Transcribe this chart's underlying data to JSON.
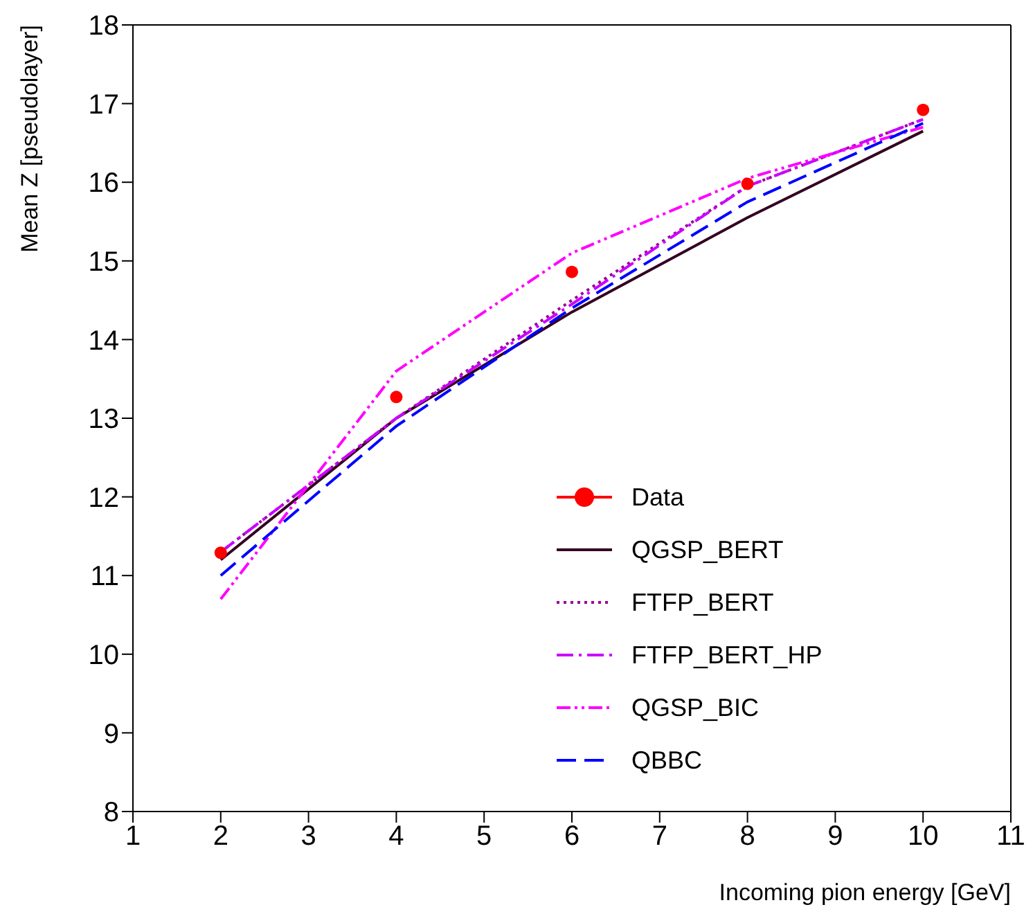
{
  "chart_data": {
    "type": "line",
    "xlabel": "Incoming pion energy [GeV]",
    "ylabel": "Mean Z [pseudolayer]",
    "x": [
      2,
      4,
      6,
      8,
      10
    ],
    "series": [
      {
        "name": "Data",
        "type": "scatter",
        "color": "#ff0000",
        "marker": "circle",
        "values": [
          11.29,
          13.27,
          14.86,
          15.98,
          16.92
        ]
      },
      {
        "name": "QGSP_BERT",
        "color": "#330022",
        "line_style": "solid",
        "values": [
          11.2,
          13.0,
          14.35,
          15.55,
          16.65
        ]
      },
      {
        "name": "FTFP_BERT",
        "color": "#990099",
        "line_style": "dotted",
        "values": [
          11.3,
          13.0,
          14.5,
          15.95,
          16.8
        ]
      },
      {
        "name": "FTFP_BERT_HP",
        "color": "#cc00ff",
        "line_style": "dashdot",
        "values": [
          11.3,
          13.0,
          14.45,
          15.95,
          16.8
        ]
      },
      {
        "name": "QGSP_BIC",
        "color": "#ff00ff",
        "line_style": "dashdotdot",
        "values": [
          10.7,
          13.6,
          15.1,
          16.05,
          16.7
        ]
      },
      {
        "name": "QBBC",
        "color": "#0000ff",
        "line_style": "dashed",
        "values": [
          11.0,
          12.9,
          14.4,
          15.75,
          16.75
        ]
      }
    ],
    "xlim": [
      1,
      11
    ],
    "xticks": [
      1,
      2,
      3,
      4,
      5,
      6,
      7,
      8,
      9,
      10,
      11
    ],
    "ylim": [
      8,
      18
    ],
    "yticks": [
      8,
      9,
      10,
      11,
      12,
      13,
      14,
      15,
      16,
      17,
      18
    ],
    "grid": false,
    "legend": "bottom right"
  }
}
